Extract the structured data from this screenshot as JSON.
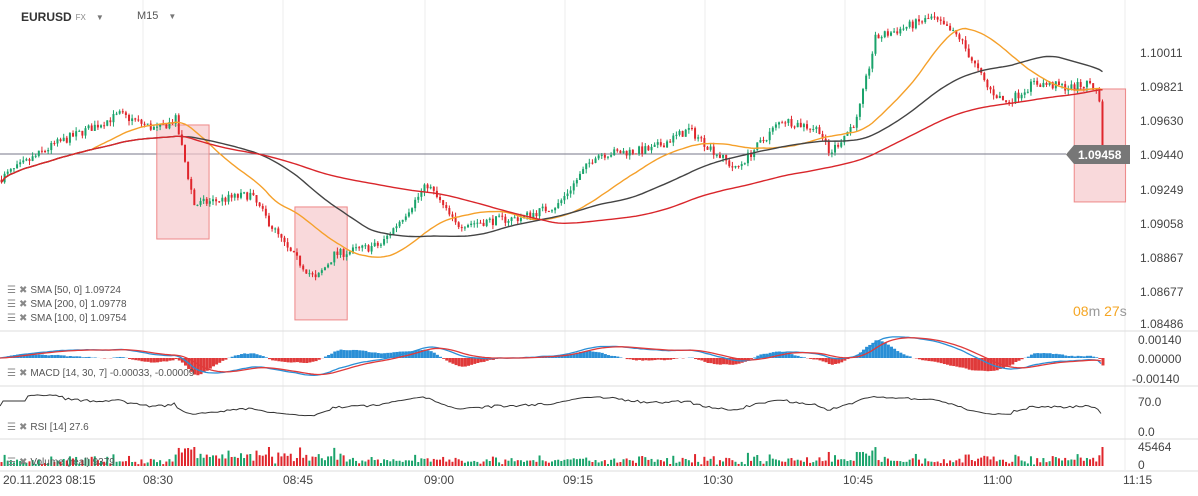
{
  "header": {
    "symbol": "EURUSD",
    "market": "FX",
    "timeframe": "M15"
  },
  "legends": {
    "sma50": "SMA [50, 0] 1.09724",
    "sma200": "SMA [200, 0] 1.09778",
    "sma100": "SMA [100, 0] 1.09754",
    "macd": "MACD [14, 30, 7] -0.00033, -0.00009",
    "rsi": "RSI [14] 27.6",
    "volume": "Volume (real) 9379"
  },
  "price_axis": [
    "1.10011",
    "1.09821",
    "1.09630",
    "1.09440",
    "1.09249",
    "1.09058",
    "1.08867",
    "1.08677",
    "1.08486"
  ],
  "current_price": "1.09458",
  "macd_axis": [
    "0.00140",
    "0.00000",
    "-0.00140"
  ],
  "rsi_axis": [
    "70.0",
    "0.0"
  ],
  "volume_axis": [
    "45464",
    "0"
  ],
  "timer": {
    "min": "08",
    "min_unit": "m",
    "sec": "27",
    "sec_unit": "s"
  },
  "x_axis": [
    "20.11.2023  08:15",
    "08:30",
    "08:45",
    "09:00",
    "09:15",
    "10:30",
    "10:45",
    "11:00",
    "11:15"
  ],
  "colors": {
    "up": "#1aa36b",
    "down": "#e0262c",
    "sma50": "#f5a02a",
    "sma100": "#444444",
    "sma200": "#d9262b",
    "macd": "#2a8fd6",
    "signal": "#e03a3a",
    "box": "#f7c9cc"
  },
  "chart_data": {
    "type": "candlestick",
    "price_keypoints_min_price": [
      [
        0,
        1.09303
      ],
      [
        6,
        1.09499
      ],
      [
        13,
        1.09667
      ],
      [
        17,
        1.09583
      ],
      [
        19,
        1.09639
      ],
      [
        21,
        1.09164
      ],
      [
        27,
        1.0922
      ],
      [
        31,
        1.08912
      ],
      [
        34,
        1.08745
      ],
      [
        36,
        1.08884
      ],
      [
        41,
        1.0894
      ],
      [
        46,
        1.09276
      ],
      [
        49,
        1.09052
      ],
      [
        56,
        1.09091
      ],
      [
        60,
        1.09164
      ],
      [
        64,
        1.09444
      ],
      [
        70,
        1.09472
      ],
      [
        74,
        1.09583
      ],
      [
        79,
        1.0936
      ],
      [
        84,
        1.09639
      ],
      [
        88,
        1.09583
      ],
      [
        89,
        1.09444
      ],
      [
        92,
        1.09639
      ],
      [
        94,
        1.10095
      ],
      [
        100,
        1.10207
      ],
      [
        103,
        1.10095
      ],
      [
        106,
        1.09816
      ],
      [
        108,
        1.09732
      ],
      [
        111,
        1.09844
      ],
      [
        115,
        1.09816
      ],
      [
        117,
        1.09844
      ],
      [
        118,
        1.0976
      ],
      [
        118.3,
        1.09458
      ]
    ],
    "highlight_boxes_min_price": [
      [
        16.8,
        22.4,
        1.09609,
        1.08972
      ],
      [
        31.6,
        37.2,
        1.09151,
        1.0852
      ],
      [
        115.1,
        120.6,
        1.0981,
        1.09179
      ]
    ],
    "price_range": [
      1.08486,
      1.10011
    ],
    "macd_range": [
      -0.0014,
      0.0014
    ],
    "rsi_range": [
      0,
      70
    ],
    "volume_range": [
      0,
      45464
    ]
  }
}
